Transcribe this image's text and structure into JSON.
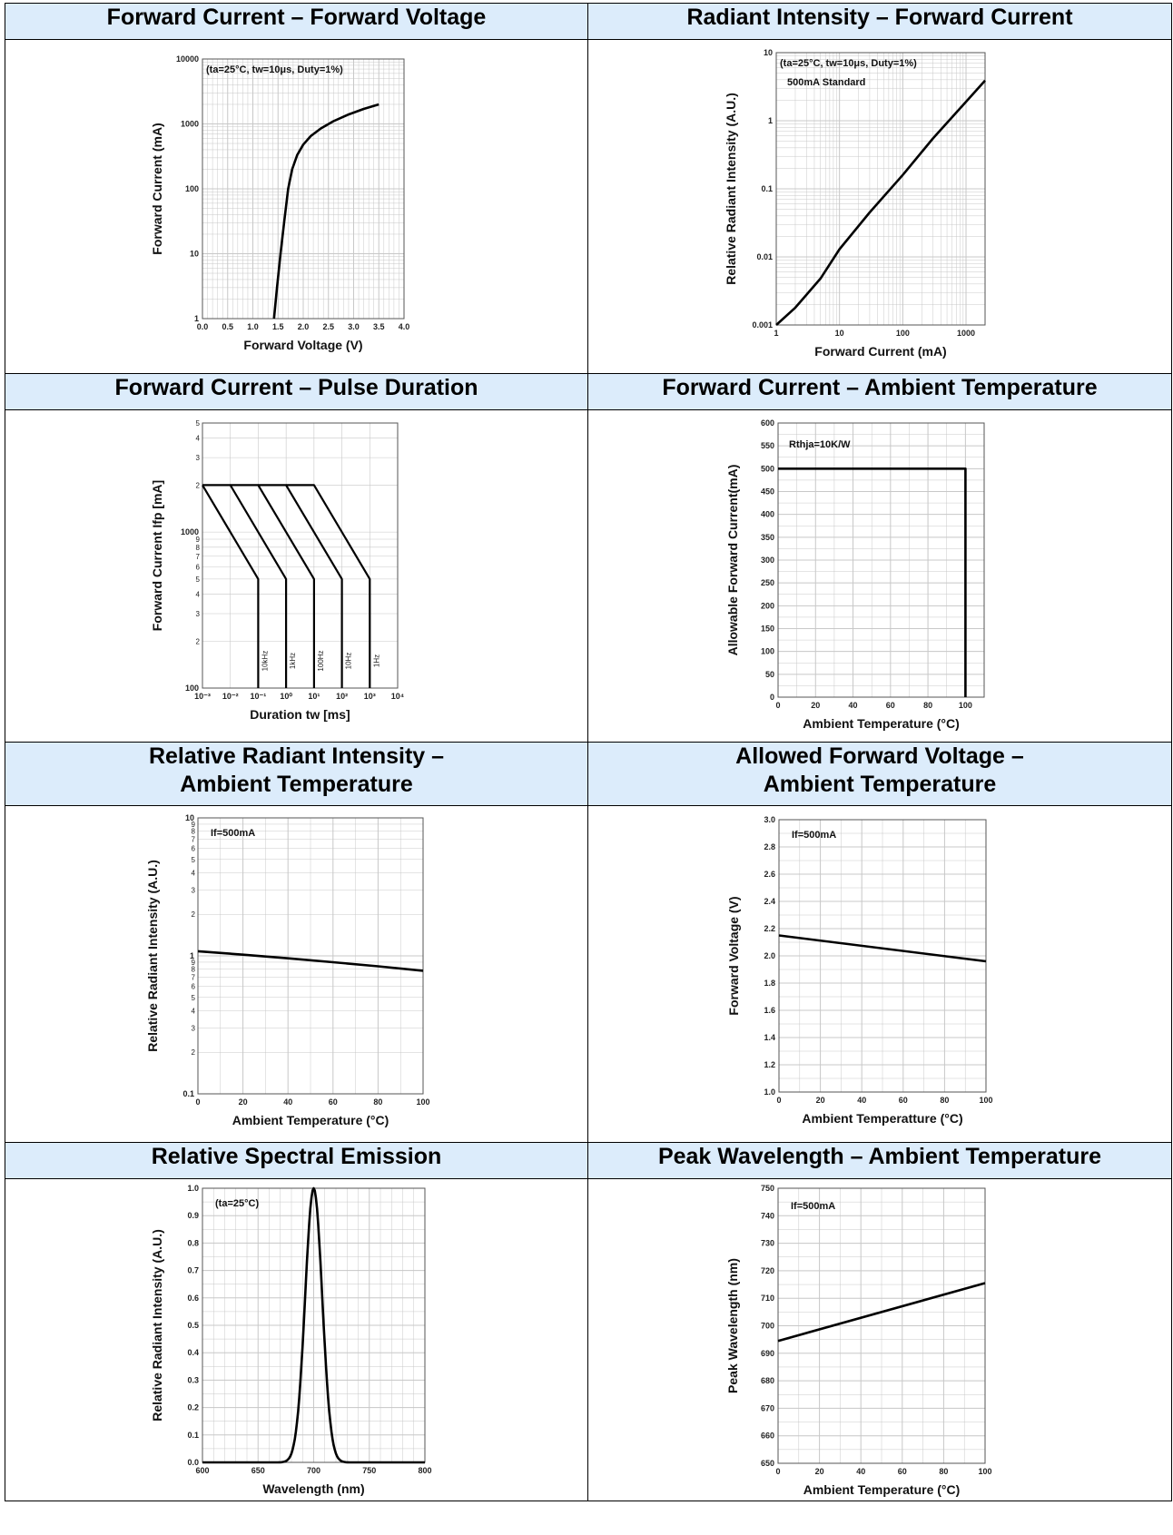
{
  "chart_data": [
    {
      "id": "fc-fv",
      "title": "Forward Current – Forward Voltage",
      "type": "line",
      "xlabel": "Forward Voltage (V)",
      "ylabel": "Forward Current (mA)",
      "xlim": [
        0,
        4
      ],
      "ylim": [
        1,
        10000
      ],
      "yscale": "log",
      "x_ticks": [
        0,
        0.5,
        1,
        1.5,
        2,
        2.5,
        3,
        3.5,
        4
      ],
      "x_tick_labels": [
        "0.0",
        "0.5",
        "1.0",
        "1.5",
        "2.0",
        "2.5",
        "3.0",
        "3.5",
        "4.0"
      ],
      "y_ticks": [
        1,
        10,
        100,
        1000,
        10000
      ],
      "y_tick_labels": [
        "1",
        "10",
        "100",
        "1000",
        "10000"
      ],
      "annotations": [
        "(ta=25°C, tw=10μs, Duty=1%)"
      ],
      "grid": true,
      "series": [
        {
          "x": [
            1.42,
            1.48,
            1.55,
            1.62,
            1.7,
            1.78,
            1.88,
            2.0,
            2.15,
            2.35,
            2.6,
            2.9,
            3.2,
            3.5
          ],
          "y": [
            1,
            3,
            10,
            30,
            100,
            200,
            330,
            480,
            650,
            850,
            1100,
            1400,
            1700,
            2000
          ]
        }
      ]
    },
    {
      "id": "ri-fc",
      "title": "Radiant Intensity – Forward Current",
      "type": "line",
      "xlabel": "Forward Current (mA)",
      "ylabel": "Relative Radiant Intensity (A.U.)",
      "xlim": [
        1,
        2000
      ],
      "ylim": [
        0.001,
        10
      ],
      "xscale": "log",
      "yscale": "log",
      "x_ticks": [
        1,
        10,
        100,
        1000
      ],
      "x_tick_labels": [
        "1",
        "10",
        "100",
        "1000"
      ],
      "y_ticks": [
        0.001,
        0.01,
        0.1,
        1,
        10
      ],
      "y_tick_labels": [
        "0.001",
        "0.01",
        "0.1",
        "1",
        "10"
      ],
      "annotations": [
        "(ta=25°C, tw=10μs, Duty=1%)",
        "500mA Standard"
      ],
      "grid": true,
      "series": [
        {
          "x": [
            1,
            2,
            5,
            10,
            30,
            100,
            300,
            1000,
            2000
          ],
          "y": [
            0.001,
            0.0018,
            0.0048,
            0.013,
            0.045,
            0.16,
            0.55,
            1.9,
            3.9
          ]
        }
      ]
    },
    {
      "id": "fc-pd",
      "title": "Forward Current – Pulse Duration",
      "type": "line",
      "xlabel": "Duration tw [ms]",
      "ylabel": "Forward Current Ifp [mA]",
      "xlim": [
        0.001,
        10000
      ],
      "ylim": [
        100,
        5000
      ],
      "xscale": "log",
      "yscale": "log",
      "x_tick_labels": [
        "10⁻³",
        "10⁻²",
        "10⁻¹",
        "10⁰",
        "10¹",
        "10²",
        "10³",
        "10⁴"
      ],
      "y_tick_labels": [
        "100",
        "1000"
      ],
      "grid": true,
      "series": [
        {
          "name": "10kHz",
          "x": [
            0.001,
            0.1,
            0.1
          ],
          "y": [
            2000,
            500,
            100
          ]
        },
        {
          "name": "1kHz",
          "x": [
            0.001,
            0.01,
            1,
            1
          ],
          "y": [
            2000,
            2000,
            500,
            100
          ]
        },
        {
          "name": "100Hz",
          "x": [
            0.01,
            0.1,
            10,
            10
          ],
          "y": [
            2000,
            2000,
            500,
            100
          ]
        },
        {
          "name": "10Hz",
          "x": [
            0.1,
            1,
            100,
            100
          ],
          "y": [
            2000,
            2000,
            500,
            100
          ]
        },
        {
          "name": "1Hz",
          "x": [
            1,
            10,
            1000,
            1000
          ],
          "y": [
            2000,
            2000,
            500,
            100
          ]
        }
      ]
    },
    {
      "id": "fc-at",
      "title": "Forward Current – Ambient Temperature",
      "type": "line",
      "xlabel": "Ambient Temperature (°C)",
      "ylabel": "Allowable Forward Current(mA)",
      "xlim": [
        0,
        110
      ],
      "ylim": [
        0,
        600
      ],
      "x_ticks": [
        0,
        20,
        40,
        60,
        80,
        100
      ],
      "y_ticks": [
        0,
        50,
        100,
        150,
        200,
        250,
        300,
        350,
        400,
        450,
        500,
        550,
        600
      ],
      "annotations": [
        "Rthja=10K/W"
      ],
      "grid": true,
      "series": [
        {
          "x": [
            0,
            100,
            100
          ],
          "y": [
            500,
            500,
            0
          ]
        }
      ]
    },
    {
      "id": "rri-at",
      "title": "Relative Radiant Intensity – Ambient Temperature",
      "type": "line",
      "xlabel": "Ambient Temperature (°C)",
      "ylabel": "Relative Radiant Intensity (A.U.)",
      "xlim": [
        0,
        100
      ],
      "ylim": [
        0.1,
        10
      ],
      "yscale": "log",
      "x_ticks": [
        0,
        20,
        40,
        60,
        80,
        100
      ],
      "y_tick_labels": [
        "0.1",
        "1",
        "10"
      ],
      "annotations": [
        "If=500mA"
      ],
      "grid": true,
      "series": [
        {
          "x": [
            0,
            20,
            40,
            60,
            80,
            100
          ],
          "y": [
            1.08,
            1.02,
            0.96,
            0.9,
            0.84,
            0.78
          ]
        }
      ]
    },
    {
      "id": "afv-at",
      "title": "Allowed Forward Voltage – Ambient Temperature",
      "type": "line",
      "xlabel": "Ambient Temperatture (°C)",
      "ylabel": "Forward Voltage (V)",
      "xlim": [
        0,
        100
      ],
      "ylim": [
        1.0,
        3.0
      ],
      "x_ticks": [
        0,
        20,
        40,
        60,
        80,
        100
      ],
      "y_ticks": [
        1.0,
        1.2,
        1.4,
        1.6,
        1.8,
        2.0,
        2.2,
        2.4,
        2.6,
        2.8,
        3.0
      ],
      "y_tick_labels": [
        "1.0",
        "1.2",
        "1.4",
        "1.6",
        "1.8",
        "2.0",
        "2.2",
        "2.4",
        "2.6",
        "2.8",
        "3.0"
      ],
      "annotations": [
        "If=500mA"
      ],
      "grid": true,
      "series": [
        {
          "x": [
            0,
            100
          ],
          "y": [
            2.15,
            1.96
          ]
        }
      ]
    },
    {
      "id": "rse",
      "title": "Relative Spectral Emission",
      "type": "line",
      "xlabel": "Wavelength (nm)",
      "ylabel": "Relative Radiant Intensity (A.U.)",
      "xlim": [
        600,
        800
      ],
      "ylim": [
        0,
        1.0
      ],
      "x_ticks": [
        600,
        650,
        700,
        750,
        800
      ],
      "y_ticks": [
        0,
        0.1,
        0.2,
        0.3,
        0.4,
        0.5,
        0.6,
        0.7,
        0.8,
        0.9,
        1.0
      ],
      "y_tick_labels": [
        "0.0",
        "0.1",
        "0.2",
        "0.3",
        "0.4",
        "0.5",
        "0.6",
        "0.7",
        "0.8",
        "0.9",
        "1.0"
      ],
      "annotations": [
        "(ta=25°C)"
      ],
      "grid": true,
      "series": [
        {
          "peak_nm": 700,
          "fwhm_nm": 18
        }
      ]
    },
    {
      "id": "pw-at",
      "title": "Peak Wavelength – Ambient Temperature",
      "type": "line",
      "xlabel": "Ambient Temperature (°C)",
      "ylabel": "Peak Wavelength (nm)",
      "xlim": [
        0,
        100
      ],
      "ylim": [
        650,
        750
      ],
      "x_ticks": [
        0,
        20,
        40,
        60,
        80,
        100
      ],
      "y_ticks": [
        650,
        660,
        670,
        680,
        690,
        700,
        710,
        720,
        730,
        740,
        750
      ],
      "annotations": [
        "If=500mA"
      ],
      "grid": true,
      "series": [
        {
          "x": [
            0,
            100
          ],
          "y": [
            694.5,
            715.5
          ]
        }
      ]
    }
  ],
  "headers": {
    "h1": "Forward Current – Forward Voltage",
    "h2": "Radiant Intensity – Forward Current",
    "h3": "Forward Current – Pulse Duration",
    "h4": "Forward Current – Ambient Temperature",
    "h5a": "Relative Radiant Intensity –",
    "h5b": "Ambient Temperature",
    "h6a": "Allowed Forward Voltage –",
    "h6b": "Ambient Temperature",
    "h7": "Relative Spectral Emission",
    "h8": "Peak Wavelength – Ambient Temperature"
  }
}
